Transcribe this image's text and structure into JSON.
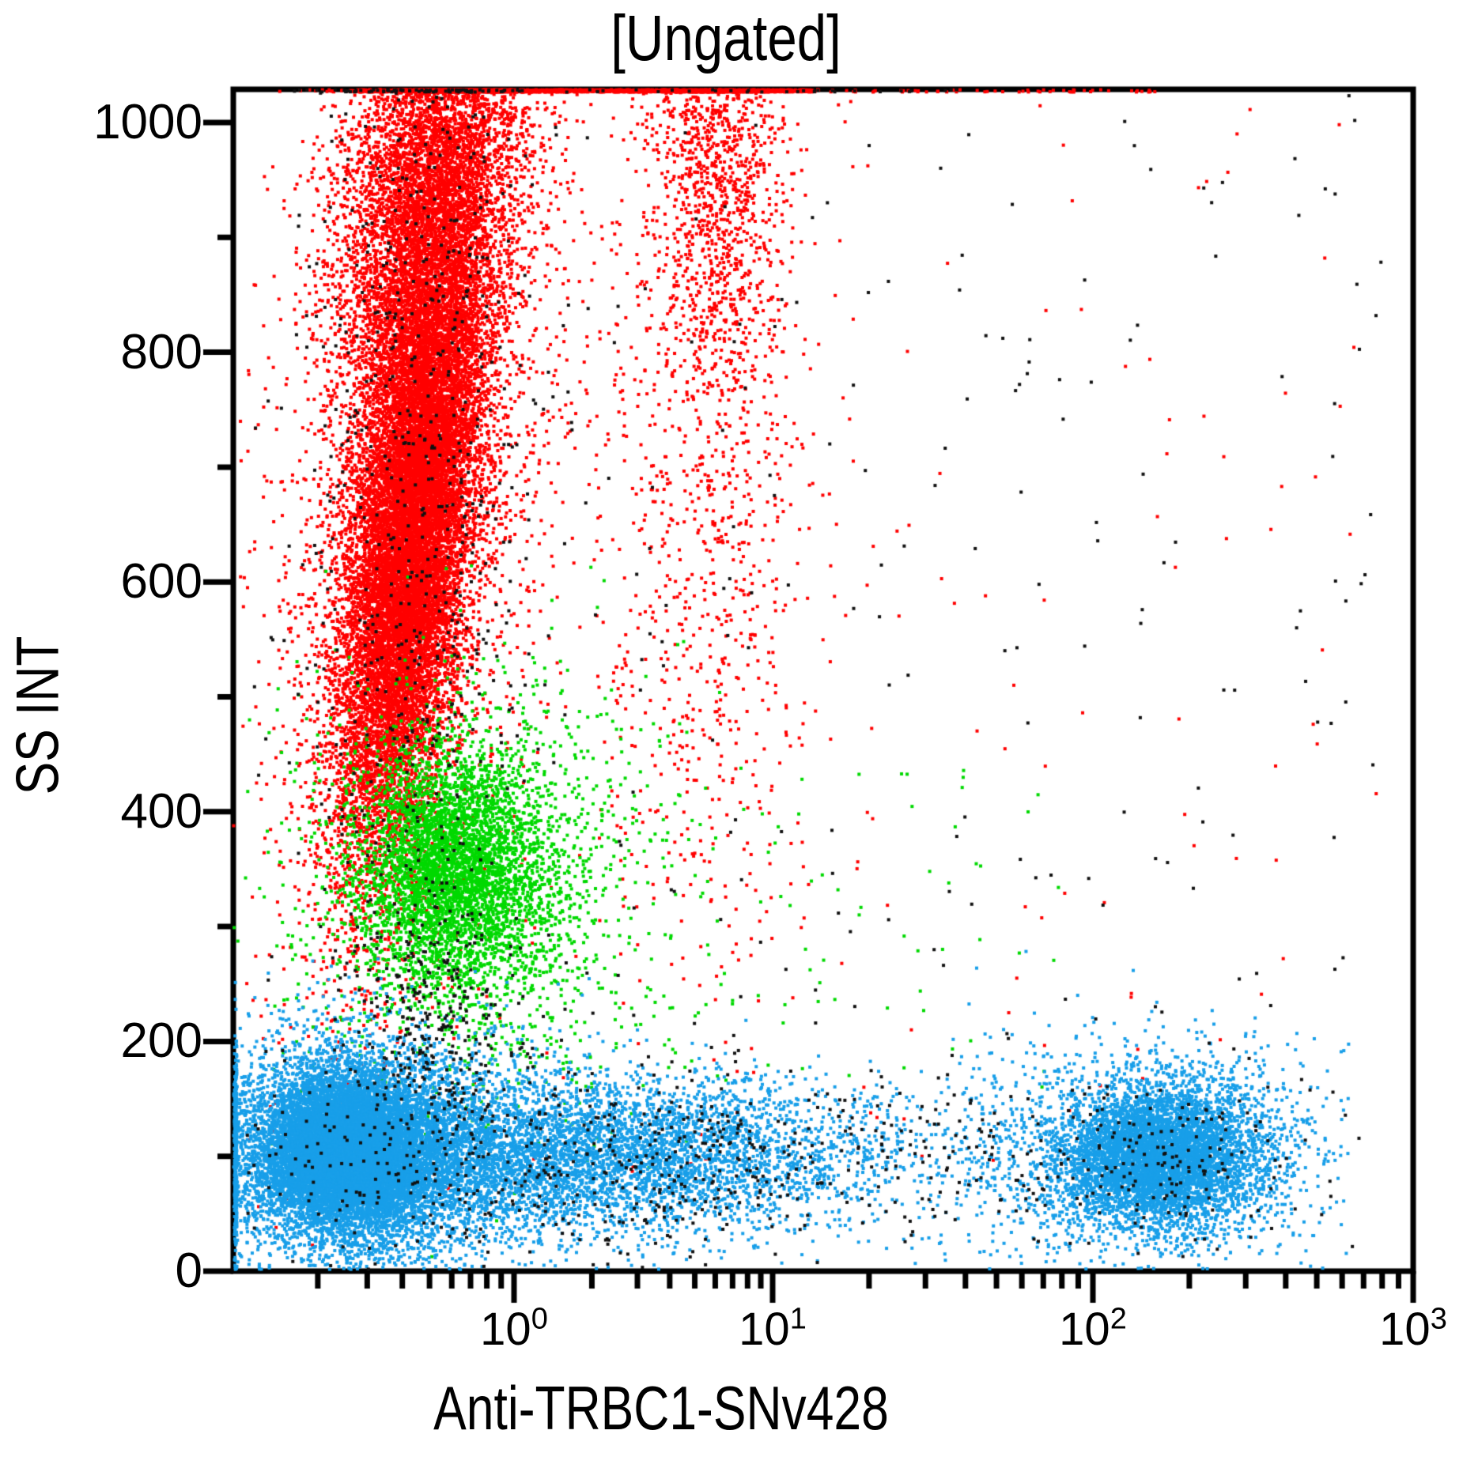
{
  "chart_data": {
    "type": "scatter",
    "title": "[Ungated]",
    "xlabel": "Anti-TRBC1-SNv428",
    "ylabel": "SS INT",
    "x_scale": "log",
    "x_range": [
      0.1,
      1000
    ],
    "y_range": [
      0,
      1028
    ],
    "grid": false,
    "legend": "none",
    "y_major_tick_values": [
      0,
      200,
      400,
      600,
      800,
      1000
    ],
    "y_minor_tick_values": [
      100,
      300,
      500,
      700,
      900
    ],
    "y_tick_labels": [
      "1000",
      "800",
      "600",
      "400",
      "200",
      "0"
    ],
    "x_major_tick_exponents": [
      0,
      1,
      2,
      3
    ],
    "x_tick_labels": [
      {
        "base": "10",
        "exp": "0"
      },
      {
        "base": "10",
        "exp": "1"
      },
      {
        "base": "10",
        "exp": "2"
      },
      {
        "base": "10",
        "exp": "3"
      }
    ],
    "colors": {
      "red": "#ff0000",
      "green": "#00d900",
      "blue": "#189fe9",
      "black": "#111111",
      "axis": "#000000",
      "background": "#ffffff"
    },
    "populations": [
      {
        "name": "red-main-column-core",
        "color": "red",
        "n": 15000,
        "x": {
          "kind": "gauss-log",
          "mu": -0.36,
          "sd": 0.105
        },
        "y": {
          "kind": "gauss",
          "mu": 655,
          "sd": 140
        },
        "tilt": 0.00045
      },
      {
        "name": "red-main-column-upper",
        "color": "red",
        "n": 5200,
        "x": {
          "kind": "gauss-log",
          "mu": -0.3,
          "sd": 0.16
        },
        "y": {
          "kind": "gauss",
          "mu": 950,
          "sd": 95
        },
        "tilt": 0.00055
      },
      {
        "name": "red-main-column-halo",
        "color": "red",
        "n": 3000,
        "x": {
          "kind": "gauss-log",
          "mu": -0.33,
          "sd": 0.24
        },
        "y": {
          "kind": "gauss",
          "mu": 680,
          "sd": 230
        },
        "tilt": 0.00045
      },
      {
        "name": "red-top-pinned-line",
        "color": "red",
        "n": 1100,
        "x": {
          "kind": "uniform-log",
          "min": -0.27,
          "max": 1.13
        },
        "y": {
          "kind": "edge-top"
        }
      },
      {
        "name": "red-top-pinned-sparse",
        "color": "red",
        "n": 60,
        "x": {
          "kind": "uniform-log",
          "min": 1.05,
          "max": 2.2
        },
        "y": {
          "kind": "edge-top"
        }
      },
      {
        "name": "red-secondary-streak",
        "color": "red",
        "n": 1600,
        "x": {
          "kind": "gauss-log",
          "mu": 0.78,
          "sd": 0.13
        },
        "y": {
          "kind": "gauss",
          "mu": 980,
          "sd": 120
        }
      },
      {
        "name": "red-secondary-streak-tail",
        "color": "red",
        "n": 800,
        "x": {
          "kind": "gauss-log",
          "mu": 0.72,
          "sd": 0.22
        },
        "y": {
          "kind": "gauss",
          "mu": 640,
          "sd": 200
        }
      },
      {
        "name": "red-scatter-sparse",
        "color": "red",
        "n": 200,
        "x": {
          "kind": "uniform-log",
          "min": -0.95,
          "max": 2.9
        },
        "y": {
          "kind": "uniform",
          "min": 80,
          "max": 1020
        }
      },
      {
        "name": "green-cluster-core",
        "color": "green",
        "n": 3800,
        "x": {
          "kind": "gauss-log",
          "mu": -0.215,
          "sd": 0.17
        },
        "y": {
          "kind": "gauss",
          "mu": 352,
          "sd": 52
        }
      },
      {
        "name": "green-cluster-halo",
        "color": "green",
        "n": 1400,
        "x": {
          "kind": "gauss-log",
          "mu": -0.12,
          "sd": 0.33
        },
        "y": {
          "kind": "gauss",
          "mu": 330,
          "sd": 95
        }
      },
      {
        "name": "green-scatter-sparse",
        "color": "green",
        "n": 150,
        "x": {
          "kind": "uniform-log",
          "min": -0.6,
          "max": 1.9
        },
        "y": {
          "kind": "uniform",
          "min": 160,
          "max": 440
        }
      },
      {
        "name": "blue-left-cluster-core",
        "color": "blue",
        "n": 9000,
        "x": {
          "kind": "gauss-log",
          "mu": -0.6,
          "sd": 0.135
        },
        "y": {
          "kind": "gauss",
          "mu": 104,
          "sd": 30
        }
      },
      {
        "name": "blue-left-cluster-halo",
        "color": "blue",
        "n": 6500,
        "x": {
          "kind": "gauss-log",
          "mu": -0.55,
          "sd": 0.3
        },
        "y": {
          "kind": "gauss",
          "mu": 103,
          "sd": 50
        }
      },
      {
        "name": "blue-left-edge-pinned",
        "color": "blue",
        "n": 320,
        "x": {
          "kind": "edge-left"
        },
        "y": {
          "kind": "gauss",
          "mu": 100,
          "sd": 52
        }
      },
      {
        "name": "blue-band",
        "color": "blue",
        "n": 5200,
        "x": {
          "kind": "gauss-log",
          "mu": 0.3,
          "sd": 0.6,
          "min": -0.75,
          "max": 1.75
        },
        "y": {
          "kind": "gauss",
          "mu": 100,
          "sd": 34
        }
      },
      {
        "name": "blue-right-cluster-core",
        "color": "blue",
        "n": 4200,
        "x": {
          "kind": "gauss-log",
          "mu": 2.205,
          "sd": 0.15
        },
        "y": {
          "kind": "gauss",
          "mu": 100,
          "sd": 28
        }
      },
      {
        "name": "blue-right-cluster-halo",
        "color": "blue",
        "n": 2200,
        "x": {
          "kind": "gauss-log",
          "mu": 2.18,
          "sd": 0.28,
          "min": 1.5,
          "max": 2.8
        },
        "y": {
          "kind": "gauss",
          "mu": 101,
          "sd": 46
        }
      },
      {
        "name": "black-in-red-column",
        "color": "black",
        "n": 650,
        "x": {
          "kind": "gauss-log",
          "mu": -0.33,
          "sd": 0.19
        },
        "y": {
          "kind": "gauss",
          "mu": 720,
          "sd": 270
        }
      },
      {
        "name": "black-mid-smear",
        "color": "black",
        "n": 300,
        "x": {
          "kind": "gauss-log",
          "mu": -0.28,
          "sd": 0.14
        },
        "y": {
          "kind": "gauss",
          "mu": 215,
          "sd": 60
        }
      },
      {
        "name": "black-in-band",
        "color": "black",
        "n": 650,
        "x": {
          "kind": "gauss-log",
          "mu": 0.5,
          "sd": 0.95,
          "min": -0.95,
          "max": 2.75
        },
        "y": {
          "kind": "gauss",
          "mu": 96,
          "sd": 42
        }
      },
      {
        "name": "black-right-blob",
        "color": "black",
        "n": 140,
        "x": {
          "kind": "gauss-log",
          "mu": 2.2,
          "sd": 0.22
        },
        "y": {
          "kind": "gauss",
          "mu": 100,
          "sd": 45
        }
      },
      {
        "name": "black-scatter-uniform",
        "color": "black",
        "n": 300,
        "x": {
          "kind": "uniform-log",
          "min": -0.98,
          "max": 2.92
        },
        "y": {
          "kind": "uniform",
          "min": 30,
          "max": 1025
        }
      },
      {
        "name": "black-top-pinned",
        "color": "black",
        "n": 45,
        "x": {
          "kind": "uniform-log",
          "min": -0.4,
          "max": 1.6
        },
        "y": {
          "kind": "edge-top"
        }
      }
    ]
  }
}
